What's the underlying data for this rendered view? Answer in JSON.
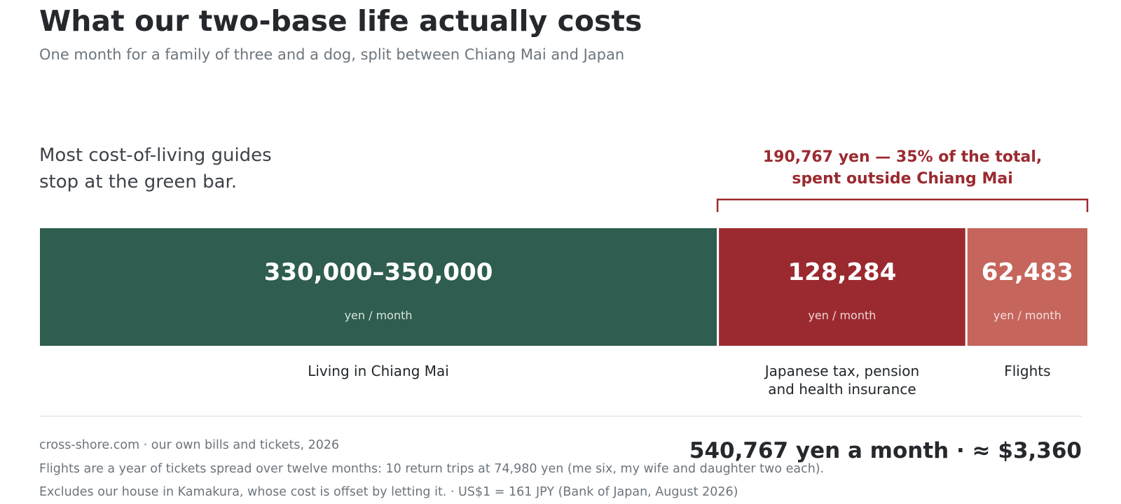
{
  "header": {
    "title": "What our two-base life actually costs",
    "subtitle": "One month for a family of three and a dog, split between Chiang Mai and Japan"
  },
  "lead": {
    "line1": "Most cost-of-living guides",
    "line2": "stop at the green bar."
  },
  "chart_data": {
    "type": "bar",
    "orientation": "horizontal-stacked",
    "unit_label": "yen / month",
    "segments": [
      {
        "value_label": "330,000–350,000",
        "value_low": 330000,
        "value_high": 350000,
        "value": 350000,
        "unit": "yen / month",
        "category": [
          "Living in Chiang Mai"
        ],
        "color": "#2f5d50",
        "unit_color": "#d9e6df"
      },
      {
        "value_label": "128,284",
        "value": 128284,
        "unit": "yen / month",
        "category": [
          "Japanese tax, pension",
          "and health insurance"
        ],
        "color": "#9b2a30",
        "unit_color": "#efd6d6"
      },
      {
        "value_label": "62,483",
        "value": 62483,
        "unit": "yen / month",
        "category": [
          "Flights"
        ],
        "color": "#c5655c",
        "unit_color": "#f6e0dc"
      }
    ],
    "annotation": {
      "lines": [
        "190,767 yen — 35% of the total,",
        "spent outside Chiang Mai"
      ],
      "spans_segments": [
        1,
        2
      ],
      "color": "#9b2a30"
    }
  },
  "footer": {
    "source": "cross-shore.com  ·  our own bills and tickets, 2026",
    "note1": "Flights are a year of tickets spread over twelve months: 10 return trips at 74,980 yen (me six, my wife and daughter two each).",
    "note2": "Excludes our house in Kamakura, whose cost is offset by letting it.  ·  US$1 = 161 JPY (Bank of Japan, August 2026)",
    "total": "540,767 yen a month   ·   ≈ $3,360"
  }
}
